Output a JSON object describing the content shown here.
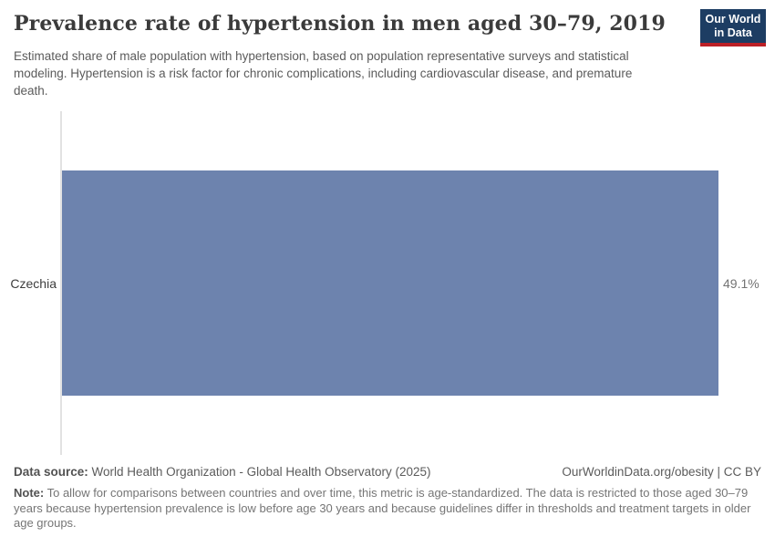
{
  "header": {
    "title": "Prevalence rate of hypertension in men aged 30–79, 2019",
    "subtitle": "Estimated share of male population with hypertension, based on population representative surveys and statistical modeling. Hypertension is a risk factor for chronic complications, including cardiovascular disease, and premature death.",
    "logo": {
      "line1": "Our World",
      "line2": "in Data",
      "bg_color": "#1d3d63",
      "accent_color": "#bc2026"
    }
  },
  "chart_data": {
    "type": "bar",
    "orientation": "horizontal",
    "title": "Prevalence rate of hypertension in men aged 30–79, 2019",
    "categories": [
      "Czechia"
    ],
    "values": [
      49.1
    ],
    "value_labels": [
      "49.1%"
    ],
    "unit": "%",
    "xlim": [
      0,
      49.1
    ],
    "grid": false,
    "legend": "none",
    "bar_color": "#6d83ae",
    "axis_line_color": "#e2e2e2"
  },
  "footer": {
    "data_source_label": "Data source:",
    "data_source_value": "World Health Organization - Global Health Observatory (2025)",
    "url": "OurWorldinData.org/obesity",
    "separator": " | ",
    "license": "CC BY",
    "note_label": "Note:",
    "note_text": "To allow for comparisons between countries and over time, this metric is age-standardized. The data is restricted to those aged 30–79 years because hypertension prevalence is low before age 30 years and because guidelines differ in thresholds and treatment targets in older age groups."
  }
}
